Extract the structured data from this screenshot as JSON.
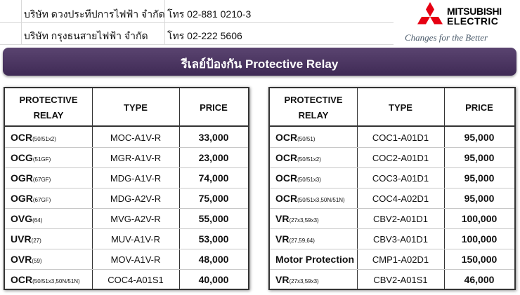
{
  "contacts": [
    {
      "company": "บริษัท ดวงประทีปการไฟฟ้า จำกัด",
      "phone": "โทร 02-881 0210-3"
    },
    {
      "company": "บริษัท กรุงธนสายไฟฟ้า จำกัด",
      "phone": "โทร 02-222 5606"
    }
  ],
  "logo": {
    "brand_line1": "MITSUBISHI",
    "brand_line2": "ELECTRIC",
    "slogan": "Changes for the Better",
    "color": "#e60012"
  },
  "banner": {
    "title": "รีเลย์ป้องกัน Protective Relay",
    "color": "#4a3560"
  },
  "headers": {
    "relay": "PROTECTIVE RELAY",
    "type": "TYPE",
    "price": "PRICE"
  },
  "left_table": [
    {
      "name": "OCR",
      "sub": "(50/51x2)",
      "type": "MOC-A1V-R",
      "price": "33,000"
    },
    {
      "name": "OCG",
      "sub": "(51GF)",
      "type": "MGR-A1V-R",
      "price": "23,000"
    },
    {
      "name": "OGR",
      "sub": "(67GF)",
      "type": "MDG-A1V-R",
      "price": "74,000"
    },
    {
      "name": "OGR",
      "sub": "(67GF)",
      "type": "MDG-A2V-R",
      "price": "75,000"
    },
    {
      "name": "OVG",
      "sub": "(64)",
      "type": "MVG-A2V-R",
      "price": "55,000"
    },
    {
      "name": "UVR",
      "sub": "(27)",
      "type": "MUV-A1V-R",
      "price": "53,000"
    },
    {
      "name": "OVR",
      "sub": "(59)",
      "type": "MOV-A1V-R",
      "price": "48,000"
    },
    {
      "name": "OCR",
      "sub": "(50/51x3,50N/51N)",
      "type": "COC4-A01S1",
      "price": "40,000"
    }
  ],
  "right_table": [
    {
      "name": "OCR",
      "sub": "(50/51)",
      "type": "COC1-A01D1",
      "price": "95,000"
    },
    {
      "name": "OCR",
      "sub": "(50/51x2)",
      "type": "COC2-A01D1",
      "price": "95,000"
    },
    {
      "name": "OCR",
      "sub": "(50/51x3)",
      "type": "COC3-A01D1",
      "price": "95,000"
    },
    {
      "name": "OCR",
      "sub": "(50/51x3,50N/51N)",
      "type": "COC4-A02D1",
      "price": "95,000"
    },
    {
      "name": "VR",
      "sub": "(27x3,59x3)",
      "type": "CBV2-A01D1",
      "price": "100,000"
    },
    {
      "name": "VR",
      "sub": "(27,59,64)",
      "type": "CBV3-A01D1",
      "price": "100,000"
    },
    {
      "name": "Motor Protection",
      "sub": "",
      "type": "CMP1-A02D1",
      "price": "150,000"
    },
    {
      "name": "VR",
      "sub": "(27x3,59x3)",
      "type": "CBV2-A01S1",
      "price": "46,000"
    }
  ]
}
